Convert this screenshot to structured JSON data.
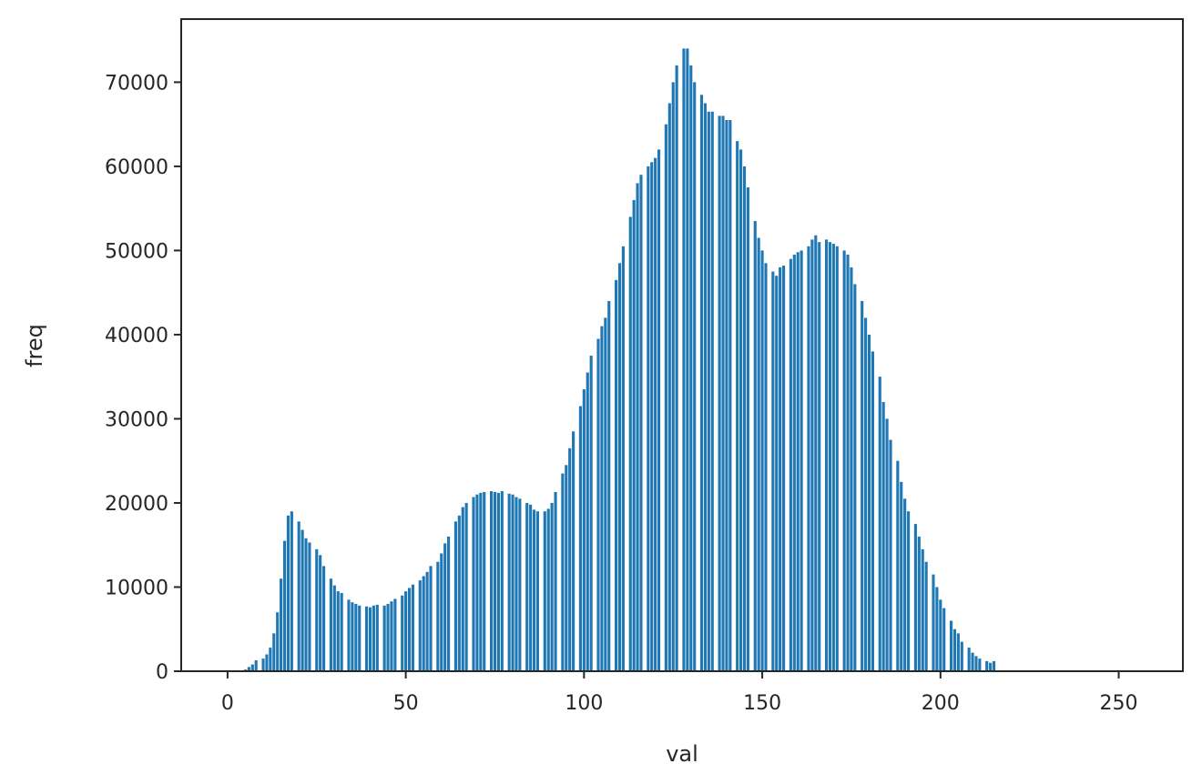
{
  "chart_data": {
    "type": "bar",
    "title": "",
    "xlabel": "val",
    "ylabel": "freq",
    "xlim": [
      -13,
      268
    ],
    "ylim": [
      0,
      77500
    ],
    "x_ticks": [
      0,
      50,
      100,
      150,
      200,
      250
    ],
    "y_ticks": [
      0,
      10000,
      20000,
      30000,
      40000,
      50000,
      60000,
      70000
    ],
    "grid": false,
    "legend": "none",
    "bar_color": "#1f77b4",
    "x_start": 0,
    "values": [
      0,
      0,
      0,
      0,
      0,
      200,
      500,
      800,
      1300,
      0,
      1500,
      2000,
      2800,
      4500,
      7000,
      11000,
      15500,
      18500,
      19000,
      0,
      17800,
      16800,
      15800,
      15300,
      0,
      14500,
      13800,
      12500,
      0,
      11000,
      10200,
      9500,
      9300,
      0,
      8500,
      8200,
      8000,
      7800,
      0,
      7700,
      7600,
      7800,
      7900,
      0,
      7800,
      8000,
      8300,
      8600,
      0,
      9000,
      9500,
      9900,
      10300,
      0,
      10800,
      11300,
      11800,
      12500,
      0,
      13000,
      14000,
      15200,
      16000,
      0,
      17800,
      18500,
      19500,
      20000,
      0,
      20700,
      21000,
      21200,
      21300,
      0,
      21400,
      21300,
      21200,
      21400,
      0,
      21100,
      21000,
      20700,
      20500,
      0,
      20000,
      19800,
      19200,
      19000,
      0,
      19000,
      19300,
      20000,
      21300,
      0,
      23500,
      24500,
      26500,
      28500,
      0,
      31500,
      33500,
      35500,
      37500,
      0,
      39500,
      41000,
      42000,
      44000,
      0,
      46500,
      48500,
      50500,
      0,
      54000,
      56000,
      58000,
      59000,
      0,
      60000,
      60500,
      61000,
      62000,
      0,
      65000,
      67500,
      70000,
      72000,
      0,
      74000,
      74000,
      72000,
      70000,
      0,
      68500,
      67500,
      66500,
      66500,
      0,
      66000,
      66000,
      65500,
      65500,
      0,
      63000,
      62000,
      60000,
      57500,
      0,
      53500,
      51500,
      50000,
      48500,
      0,
      47500,
      47000,
      48000,
      48200,
      0,
      49000,
      49500,
      49800,
      50000,
      0,
      50500,
      51300,
      51800,
      51000,
      0,
      51300,
      51000,
      50800,
      50500,
      0,
      50000,
      49500,
      48000,
      46000,
      0,
      44000,
      42000,
      40000,
      38000,
      0,
      35000,
      32000,
      30000,
      27500,
      0,
      25000,
      22500,
      20500,
      19000,
      0,
      17500,
      16000,
      14500,
      13000,
      0,
      11500,
      10000,
      8500,
      7500,
      0,
      6000,
      5000,
      4500,
      3500,
      0,
      2800,
      2200,
      1800,
      1500,
      0,
      1200,
      1000,
      1200,
      0
    ]
  }
}
